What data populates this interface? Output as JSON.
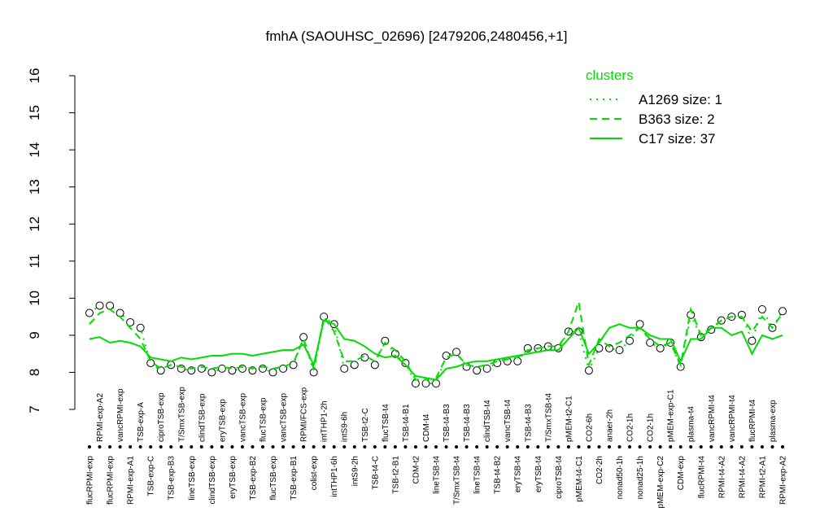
{
  "chart_data": {
    "type": "line",
    "title": "fmhA (SAOUHSC_02696) [2479206,2480456,+1]",
    "categories": [
      "flucRPMI-exp",
      "RPMI-exp-A2",
      "flucRPMI-exp",
      "vancRPMI-exp",
      "RPMI-exp-A1",
      "TSB-exp-A",
      "TSB-exp-C",
      "ciproTSB-exp",
      "TSB-exp-B3",
      "T/SmxTSB-exp",
      "lineTSB-exp",
      "clindTSB-exp",
      "clindTSB-exp",
      "eryTSB-exp",
      "eryTSB-exp",
      "vancTSB-exp",
      "TSB-exp-B2",
      "flucTSB-exp",
      "flucTSB-exp",
      "vancTSB-exp",
      "TSB-exp-B1",
      "RPMI/FCS-exp",
      "colist-exp",
      "intTHP1-2h",
      "intTHP1-6h",
      "intS9-6h",
      "intS9-2h",
      "TSB-t2-C",
      "TSB-t4-C",
      "flucTSB-t4",
      "TSB-t2-B1",
      "TSB-t4-B1",
      "CDM-t2",
      "CDM-t4",
      "lineTSB-t4",
      "TSB-t4-B3",
      "T/SmxTSB-t4",
      "TSB-t4-B3",
      "lineTSB-t4",
      "clindTSB-t4",
      "TSB-t4-B2",
      "vancTSB-t4",
      "eryTSB-t4",
      "TSB-t4-B3",
      "eryTSB-t4",
      "T/SmxTSB-t4",
      "ciproTSB-t4",
      "pMEM-t2-C1",
      "pMEM-t4-C1",
      "CO2-6h",
      "CO2-2h",
      "anaer-2h",
      "nonad50-1h",
      "CO2-1h",
      "nonad25-1h",
      "CO2-1h",
      "pMEM-exp-C2",
      "pMEM-exp-C1",
      "CDM-exp",
      "plasma-t4",
      "flucRPMI-t4",
      "vancRPMI-t4",
      "RPMI-t4-A2",
      "vancRPMI-t4",
      "RPMI-t4-A2",
      "flucRPMI-t4",
      "RPMI-t2-A1",
      "plasma-exp",
      "RPMI-exp-A2"
    ],
    "series": [
      {
        "name": "A1269 size: 1",
        "color": "#00dd00",
        "style": "dotted",
        "points": true,
        "values": [
          9.6,
          9.8,
          9.8,
          9.6,
          9.35,
          9.2,
          8.25,
          8.05,
          8.2,
          8.1,
          8.05,
          8.1,
          8.0,
          8.1,
          8.05,
          8.1,
          8.05,
          8.1,
          8.0,
          8.1,
          8.2,
          8.95,
          8.0,
          9.5,
          9.3,
          8.1,
          8.2,
          8.4,
          8.2,
          8.85,
          8.5,
          8.25,
          7.7,
          7.7,
          7.7,
          8.45,
          8.55,
          8.15,
          8.05,
          8.1,
          8.25,
          8.3,
          8.3,
          8.65,
          8.65,
          8.7,
          8.65,
          9.1,
          9.1,
          8.05,
          8.65,
          8.65,
          8.6,
          8.85,
          9.3,
          8.8,
          8.65,
          8.8,
          8.15,
          9.55,
          8.95,
          9.15,
          9.4,
          9.5,
          9.55,
          8.85,
          9.7,
          9.2,
          9.65
        ]
      },
      {
        "name": "B363 size: 2",
        "color": "#00dd00",
        "style": "dashed",
        "points": false,
        "values": [
          9.3,
          9.6,
          9.7,
          9.5,
          9.2,
          8.9,
          8.3,
          8.1,
          8.2,
          8.15,
          8.1,
          8.15,
          8.1,
          8.15,
          8.1,
          8.15,
          8.1,
          8.15,
          8.1,
          8.15,
          8.25,
          8.9,
          8.1,
          9.5,
          9.1,
          8.3,
          8.3,
          8.45,
          8.3,
          8.8,
          8.6,
          8.3,
          7.8,
          7.8,
          7.85,
          8.4,
          8.5,
          8.2,
          8.15,
          8.2,
          8.3,
          8.35,
          8.4,
          8.6,
          8.65,
          8.7,
          8.7,
          9.1,
          9.9,
          8.2,
          8.9,
          8.7,
          8.8,
          9.0,
          9.2,
          8.9,
          8.7,
          8.8,
          8.2,
          9.7,
          9.0,
          9.2,
          9.4,
          9.5,
          9.5,
          9.1,
          9.5,
          9.2,
          9.6
        ]
      },
      {
        "name": "C17 size: 37",
        "color": "#00dd00",
        "style": "solid",
        "points": false,
        "values": [
          8.9,
          8.95,
          8.8,
          8.85,
          8.8,
          8.7,
          8.4,
          8.35,
          8.3,
          8.4,
          8.35,
          8.4,
          8.45,
          8.45,
          8.5,
          8.5,
          8.45,
          8.5,
          8.55,
          8.6,
          8.6,
          8.75,
          8.2,
          9.4,
          9.3,
          8.9,
          8.85,
          8.7,
          8.5,
          8.4,
          8.45,
          8.2,
          7.9,
          7.85,
          7.8,
          8.1,
          8.15,
          8.25,
          8.3,
          8.3,
          8.35,
          8.4,
          8.45,
          8.5,
          8.55,
          8.6,
          8.6,
          8.9,
          9.2,
          8.5,
          8.8,
          9.2,
          9.3,
          9.2,
          9.2,
          9.0,
          8.9,
          8.9,
          8.3,
          8.9,
          8.9,
          9.2,
          9.2,
          9.0,
          9.1,
          8.5,
          9.0,
          8.9,
          9.0
        ]
      }
    ],
    "legend_title": "clusters",
    "legend_position": "top-right",
    "ylim": [
      7,
      16
    ],
    "yticks": [
      7,
      8,
      9,
      10,
      11,
      12,
      13,
      14,
      15,
      16
    ]
  }
}
